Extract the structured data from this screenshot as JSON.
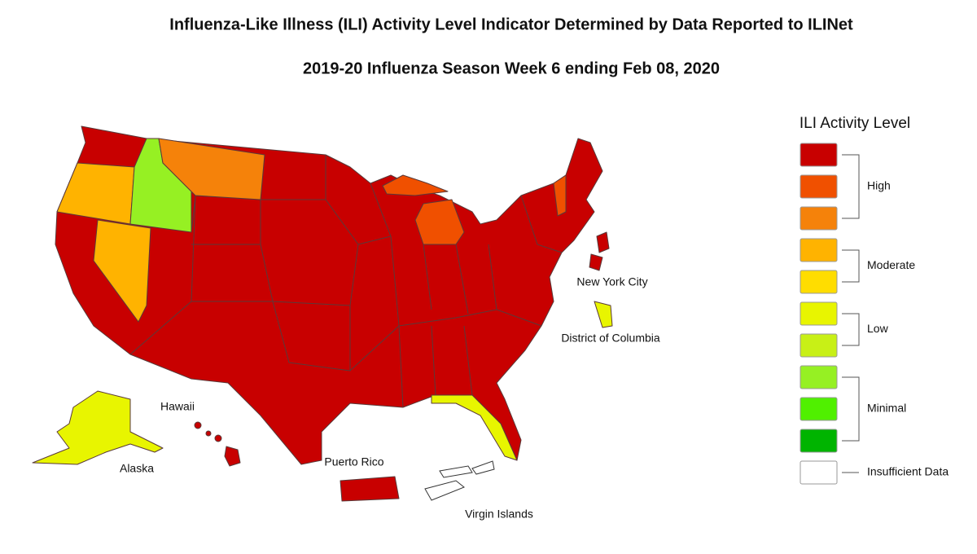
{
  "header": {
    "title": "Influenza-Like Illness (ILI) Activity Level Indicator Determined by Data Reported to ILINet",
    "subtitle": "2019-20 Influenza Season Week 6 ending Feb 08, 2020"
  },
  "map_labels": {
    "new_york_city": "New York City",
    "district_of_columbia": "District of Columbia",
    "hawaii": "Hawaii",
    "alaska": "Alaska",
    "puerto_rico": "Puerto Rico",
    "virgin_islands": "Virgin Islands"
  },
  "legend": {
    "title": "ILI Activity Level",
    "groups": [
      {
        "label": "High",
        "colors": [
          "#c80000",
          "#f05000",
          "#f5820a"
        ]
      },
      {
        "label": "Moderate",
        "colors": [
          "#ffb300",
          "#ffdd00"
        ]
      },
      {
        "label": "Low",
        "colors": [
          "#e8f500",
          "#c8f016"
        ]
      },
      {
        "label": "Minimal",
        "colors": [
          "#96f023",
          "#50f000",
          "#00b400"
        ]
      },
      {
        "label": "Insufficient Data",
        "colors": [
          "#ffffff"
        ]
      }
    ]
  }
}
